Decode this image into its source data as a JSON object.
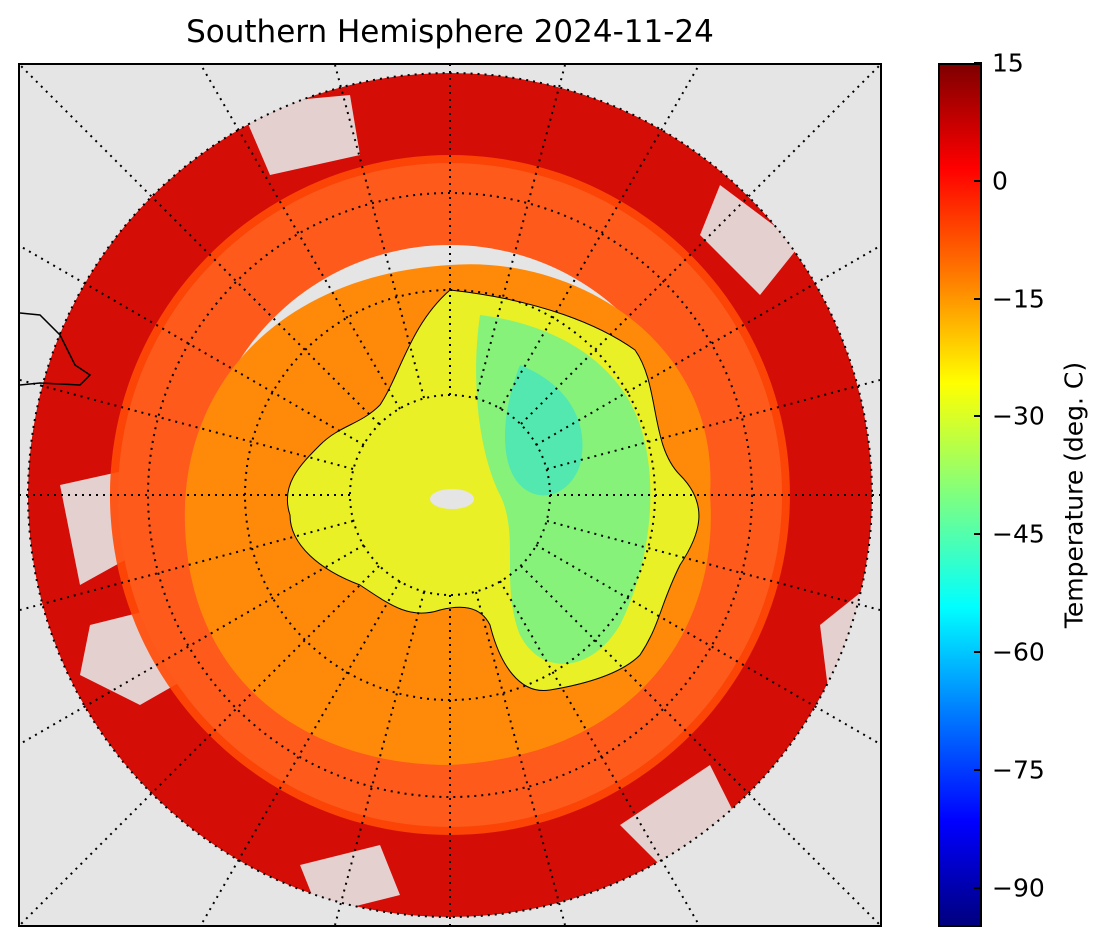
{
  "title": "Southern Hemisphere 2024-11-24",
  "colorbar": {
    "label": "Temperature (deg. C)",
    "min": -95,
    "max": 15,
    "ticks": [
      "15",
      "0",
      "−15",
      "−30",
      "−45",
      "−60",
      "−75",
      "−90"
    ],
    "tick_values": [
      15,
      0,
      -15,
      -30,
      -45,
      -60,
      -75,
      -90
    ],
    "colormap": "jet"
  },
  "map": {
    "projection": "south-polar-stereographic",
    "background_color": "#e5e5e5",
    "graticule_style": "dotted",
    "coastline_color": "#000000"
  },
  "colors": {
    "warm_ocean": "#cc0000",
    "subpolar": "#ff4500",
    "sea_ice": "#ff8c00",
    "coast_ice": "#ffa500",
    "interior": "#e6f01e",
    "plateau": "#7ff27f",
    "cold_core": "#4de8a8"
  }
}
